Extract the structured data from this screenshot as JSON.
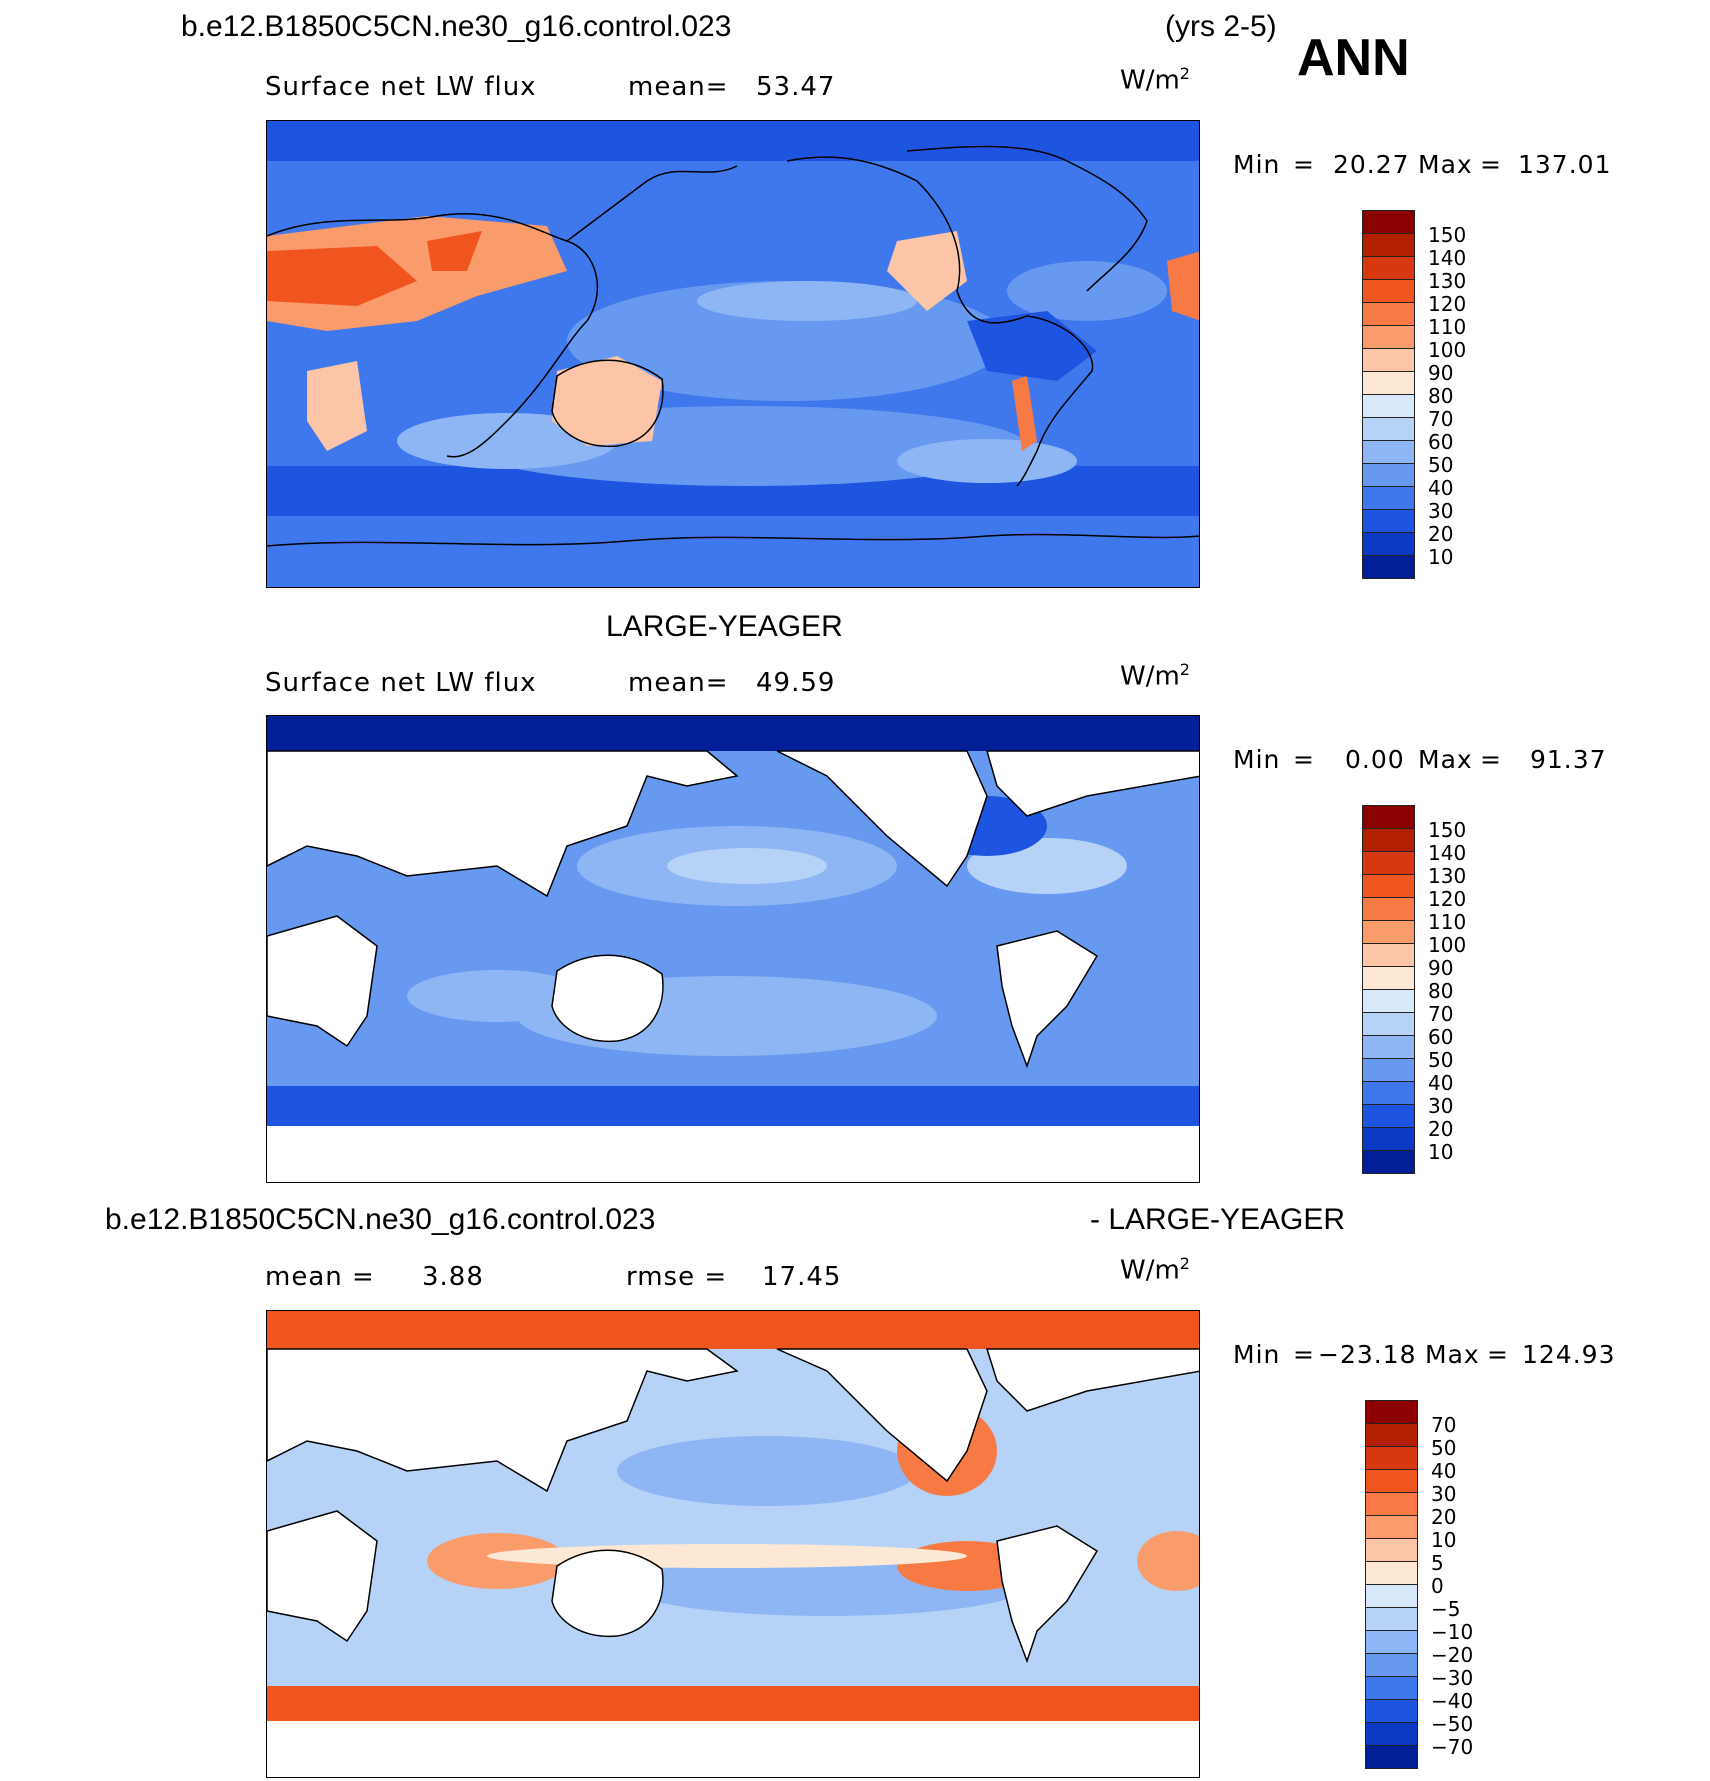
{
  "header": {
    "case_title": "b.e12.B1850C5CN.ne30_g16.control.023",
    "years": "(yrs 2-5)",
    "season": "ANN"
  },
  "panels": [
    {
      "id": "control",
      "variable": "Surface net LW flux",
      "mean_label": "mean=",
      "mean_value": "53.47",
      "units": "W/m",
      "units_sup": "2",
      "min_label": "Min",
      "min_value": "20.27",
      "max_label": "Max",
      "max_value": "137.01",
      "colorbar": {
        "labels": [
          "150",
          "140",
          "130",
          "120",
          "110",
          "100",
          "90",
          "80",
          "70",
          "60",
          "50",
          "40",
          "30",
          "20",
          "10"
        ],
        "colors": [
          "#8b0000",
          "#b22000",
          "#d8380f",
          "#f0541f",
          "#f77a45",
          "#fa9b6c",
          "#fcc5a8",
          "#fde8d5",
          "#d8e9fa",
          "#b6d3f7",
          "#8fb6f4",
          "#6799f0",
          "#3f78ec",
          "#1e55e0",
          "#0c39c3",
          "#031f97"
        ]
      }
    },
    {
      "id": "obs",
      "title": "LARGE-YEAGER",
      "variable": "Surface net LW flux",
      "mean_label": "mean=",
      "mean_value": "49.59",
      "units": "W/m",
      "units_sup": "2",
      "min_label": "Min",
      "min_value": "0.00",
      "max_label": "Max",
      "max_value": "91.37",
      "colorbar": {
        "labels": [
          "150",
          "140",
          "130",
          "120",
          "110",
          "100",
          "90",
          "80",
          "70",
          "60",
          "50",
          "40",
          "30",
          "20",
          "10"
        ],
        "colors": [
          "#8b0000",
          "#b22000",
          "#d8380f",
          "#f0541f",
          "#f77a45",
          "#fa9b6c",
          "#fcc5a8",
          "#fde8d5",
          "#d8e9fa",
          "#b6d3f7",
          "#8fb6f4",
          "#6799f0",
          "#3f78ec",
          "#1e55e0",
          "#0c39c3",
          "#031f97"
        ]
      }
    },
    {
      "id": "diff",
      "title_left": "b.e12.B1850C5CN.ne30_g16.control.023",
      "title_right": "- LARGE-YEAGER",
      "mean_label": "mean =",
      "mean_value": "3.88",
      "rmse_label": "rmse =",
      "rmse_value": "17.45",
      "units": "W/m",
      "units_sup": "2",
      "min_label": "Min",
      "min_value": "−23.18",
      "max_label": "Max",
      "max_value": "124.93",
      "colorbar": {
        "labels": [
          "70",
          "50",
          "40",
          "30",
          "20",
          "10",
          "5",
          "0",
          "−5",
          "−10",
          "−20",
          "−30",
          "−40",
          "−50",
          "−70"
        ],
        "colors": [
          "#8b0000",
          "#b22000",
          "#d8380f",
          "#f0541f",
          "#f77a45",
          "#fa9b6c",
          "#fcc5a8",
          "#fde8d5",
          "#d8e9fa",
          "#b6d3f7",
          "#8fb6f4",
          "#6799f0",
          "#3f78ec",
          "#1e55e0",
          "#0c39c3",
          "#031f97"
        ]
      }
    }
  ]
}
